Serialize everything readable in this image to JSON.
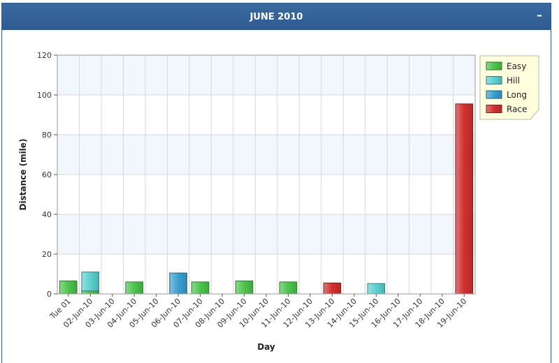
{
  "panel": {
    "title": "JUNE 2010",
    "collapse_label": "–"
  },
  "chart_data": {
    "type": "bar",
    "xlabel": "Day",
    "ylabel": "Distance (mile)",
    "ylim": [
      0,
      120
    ],
    "yticks": [
      0,
      20,
      40,
      60,
      80,
      100,
      120
    ],
    "grid": true,
    "legend_position": "top-right",
    "stacked": true,
    "categories": [
      "Tue 01",
      "02-Jun-10",
      "03-Jun-10",
      "04-Jun-10",
      "05-Jun-10",
      "06-Jun-10",
      "07-Jun-10",
      "08-Jun-10",
      "09-Jun-10",
      "10-Jun-10",
      "11-Jun-10",
      "12-Jun-10",
      "13-Jun-10",
      "14-Jun-10",
      "15-Jun-10",
      "16-Jun-10",
      "17-Jun-10",
      "18-Jun-10",
      "19-Jun-10"
    ],
    "series": [
      {
        "name": "Easy",
        "color": "#4cc44c",
        "values": [
          6.5,
          1.5,
          0,
          6,
          0,
          0,
          6,
          0,
          6.5,
          0,
          6,
          0,
          0,
          0,
          0,
          0,
          0,
          0,
          0
        ]
      },
      {
        "name": "Hill",
        "color": "#5ad0d0",
        "values": [
          0,
          9.5,
          0,
          0,
          0,
          0,
          0,
          0,
          0,
          0,
          0,
          0,
          0,
          0,
          5.2,
          0,
          0,
          0,
          0
        ]
      },
      {
        "name": "Long",
        "color": "#3aa0d0",
        "values": [
          0,
          0,
          0,
          0,
          0,
          10.5,
          0,
          0,
          0,
          0,
          0,
          0,
          0,
          0,
          0,
          0,
          0,
          0,
          0
        ]
      },
      {
        "name": "Race",
        "color": "#d03030",
        "values": [
          0,
          0,
          0,
          0,
          0,
          0,
          0,
          0,
          0,
          0,
          0,
          0,
          5.5,
          0,
          0,
          0,
          0,
          0,
          95.5
        ]
      }
    ]
  }
}
